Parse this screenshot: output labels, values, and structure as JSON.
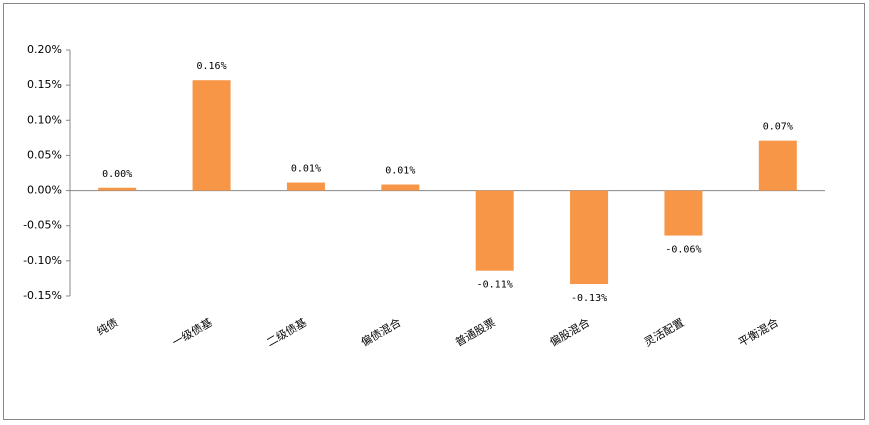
{
  "chart_data": {
    "type": "bar",
    "categories": [
      "纯债",
      "一级债基",
      "二级债基",
      "偏债混合",
      "普通股票",
      "偏股混合",
      "灵活配置",
      "平衡混合"
    ],
    "values": [
      0.004,
      0.157,
      0.0114,
      0.0086,
      -0.114,
      -0.133,
      -0.064,
      0.071
    ],
    "value_labels": [
      "0.00%",
      "0.16%",
      "0.01%",
      "0.01%",
      "-0.11%",
      "-0.13%",
      "-0.06%",
      "0.07%"
    ],
    "color": "#f79646",
    "ylim": [
      -0.15,
      0.2
    ],
    "yticks": [
      {
        "value": 0.2,
        "label": "0.20%"
      },
      {
        "value": 0.15,
        "label": "0.15%"
      },
      {
        "value": 0.1,
        "label": "0.10%"
      },
      {
        "value": 0.05,
        "label": "0.05%"
      },
      {
        "value": 0,
        "label": "0.00%"
      },
      {
        "value": -0.05,
        "label": "-0.05%"
      },
      {
        "value": -0.1,
        "label": "-0.10%"
      },
      {
        "value": -0.15,
        "label": "-0.15%"
      }
    ]
  }
}
